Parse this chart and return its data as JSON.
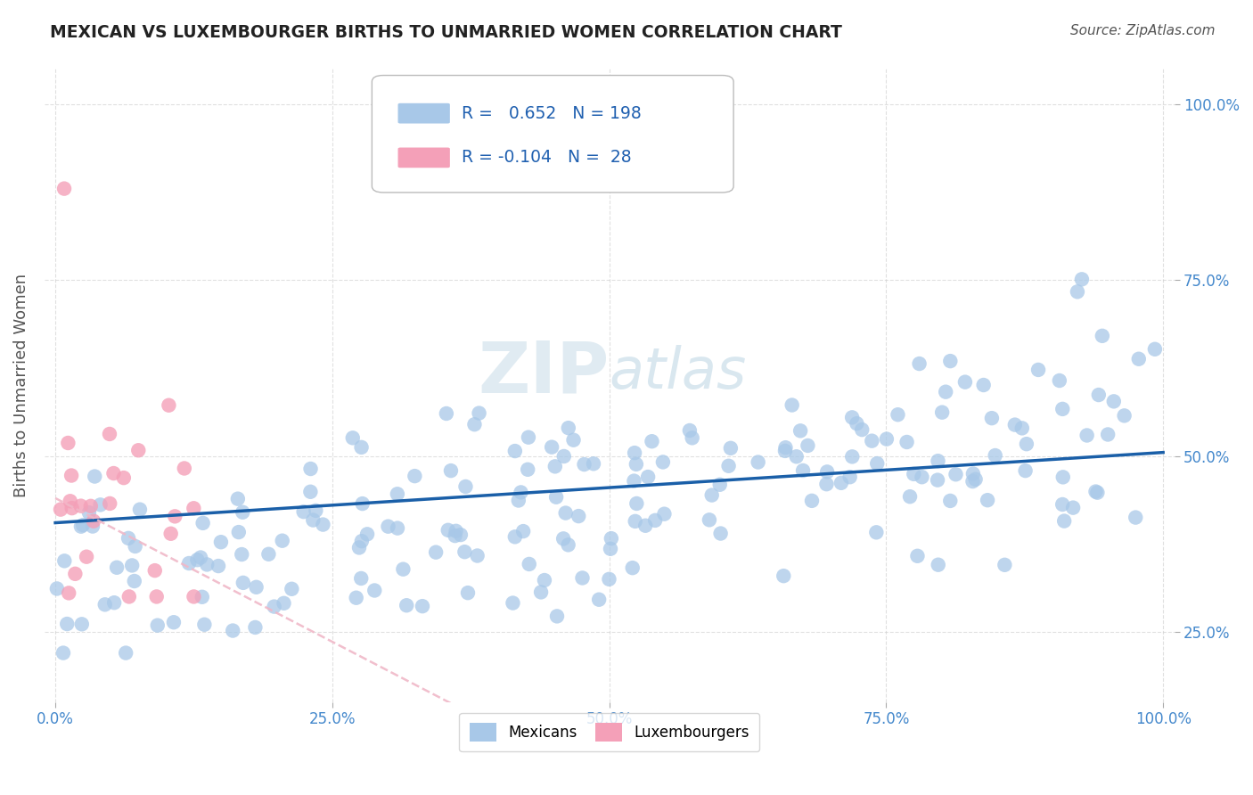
{
  "title": "MEXICAN VS LUXEMBOURGER BIRTHS TO UNMARRIED WOMEN CORRELATION CHART",
  "source": "Source: ZipAtlas.com",
  "ylabel": "Births to Unmarried Women",
  "r_mexican": 0.652,
  "n_mexican": 198,
  "r_luxembourger": -0.104,
  "n_luxembourger": 28,
  "mexican_color": "#a8c8e8",
  "luxembourger_color": "#f4a0b8",
  "mexican_line_color": "#1a5fa8",
  "luxembourger_line_color": "#f0b8c8",
  "legend_label_mexican": "Mexicans",
  "legend_label_luxembourger": "Luxembourgers",
  "background_color": "#ffffff",
  "grid_color": "#cccccc",
  "title_color": "#222222",
  "watermark_color": "#d8e8f0",
  "legend_text_color": "#2060b0",
  "axis_label_color": "#555555",
  "tick_label_color": "#4488cc"
}
